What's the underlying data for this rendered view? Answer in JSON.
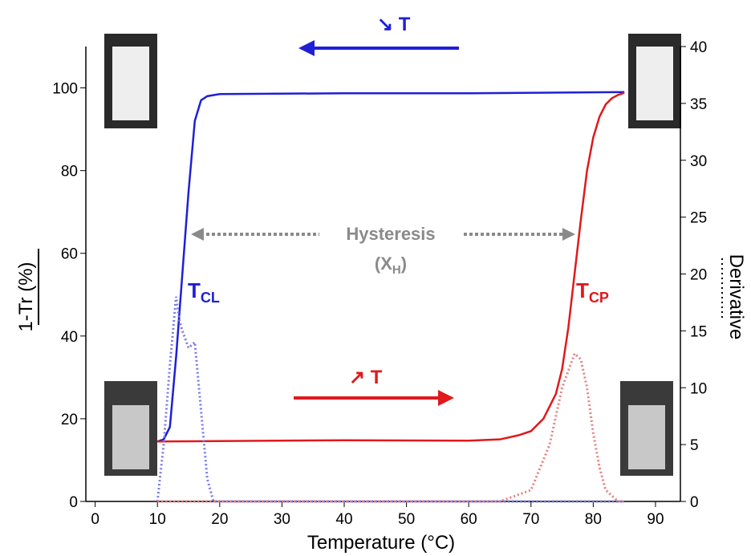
{
  "chart_data": {
    "type": "line",
    "x_label": "Temperature (°C)",
    "y_label": "1-Tr (%)",
    "y2_label": "Derivative",
    "xlim": [
      -1.5,
      94
    ],
    "xticks": [
      0,
      10,
      20,
      30,
      40,
      50,
      60,
      70,
      80,
      90
    ],
    "ylim": [
      0,
      110
    ],
    "yticks": [
      0,
      20,
      40,
      60,
      80,
      100
    ],
    "y2lim": [
      0,
      40
    ],
    "y2ticks": [
      0,
      5,
      10,
      15,
      20,
      25,
      30,
      35,
      40
    ],
    "series": [
      {
        "name": "cooling",
        "color": "#1f1fd6",
        "style": "solid",
        "x": [
          10,
          11,
          12,
          13,
          14,
          15,
          16,
          17,
          18,
          20,
          40,
          60,
          85
        ],
        "values": [
          14.5,
          15,
          18,
          35,
          55,
          75,
          92,
          97,
          98,
          98.5,
          98.7,
          98.7,
          99
        ]
      },
      {
        "name": "heating",
        "color": "#e0191c",
        "style": "solid",
        "x": [
          10,
          20,
          40,
          60,
          65,
          68,
          70,
          72,
          74,
          75,
          76,
          77,
          78,
          79,
          80,
          81,
          82,
          83,
          84,
          85
        ],
        "values": [
          14.5,
          14.6,
          14.8,
          14.7,
          15,
          16,
          17,
          20,
          26,
          32,
          42,
          55,
          68,
          80,
          88,
          93,
          96,
          97.5,
          98.3,
          98.8
        ]
      },
      {
        "name": "cooling derivative",
        "color": "#7a7ae8",
        "style": "dotted",
        "axis": "y2",
        "x": [
          10,
          11,
          12,
          13,
          13.5,
          14,
          15,
          16,
          17,
          18,
          19,
          30,
          60,
          85
        ],
        "values": [
          0,
          5,
          12,
          18,
          16,
          15,
          13.5,
          14,
          8,
          2,
          0,
          0,
          0,
          0
        ]
      },
      {
        "name": "heating derivative",
        "color": "#e88080",
        "style": "dotted",
        "axis": "y2",
        "x": [
          10,
          40,
          65,
          70,
          73,
          75,
          77,
          78,
          79,
          80,
          81,
          82,
          84,
          85
        ],
        "values": [
          0,
          0,
          0,
          1,
          5,
          10,
          13,
          12.5,
          10,
          6,
          3,
          1,
          0,
          0
        ]
      }
    ],
    "annotations": {
      "cooling_arrow": "↘ T",
      "heating_arrow": "↗ T",
      "hysteresis": "Hysteresis",
      "hysteresis_sub": {
        "pre": "(X",
        "sub": "H",
        "post": ")"
      },
      "t_cl": {
        "main": "T",
        "sub": "CL"
      },
      "t_cp": {
        "main": "T",
        "sub": "CP"
      }
    }
  }
}
